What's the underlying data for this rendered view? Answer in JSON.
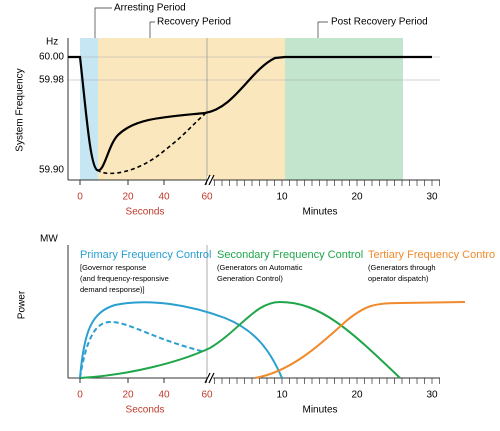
{
  "top": {
    "arresting": "Arresting Period",
    "recovery": "Recovery Period",
    "post": "Post Recovery Period",
    "unit": "Hz",
    "y_axis_title": "System Frequency",
    "y_ticks": [
      "60.00",
      "59.98",
      "59.90"
    ],
    "seconds_ticks": [
      "0",
      "20",
      "40",
      "60"
    ],
    "minutes_ticks": [
      "10",
      "20",
      "30"
    ],
    "seconds_label": "Seconds",
    "minutes_label": "Minutes"
  },
  "bottom": {
    "unit": "MW",
    "y_axis_title": "Power",
    "primary": {
      "title": "Primary Frequency Control",
      "lines": [
        "[Governor response",
        "(and frequency-responsive",
        "demand response)]"
      ]
    },
    "secondary": {
      "title": "Secondary Frequency Control",
      "lines": [
        "(Generators on Automatic",
        "Generation Control)"
      ]
    },
    "tertiary": {
      "title": "Tertiary Frequency Contro",
      "lines": [
        "(Generators through",
        "operator dispatch)"
      ]
    },
    "seconds_ticks": [
      "0",
      "20",
      "40",
      "60"
    ],
    "minutes_ticks": [
      "10",
      "20",
      "30"
    ],
    "seconds_label": "Seconds",
    "minutes_label": "Minutes"
  }
}
